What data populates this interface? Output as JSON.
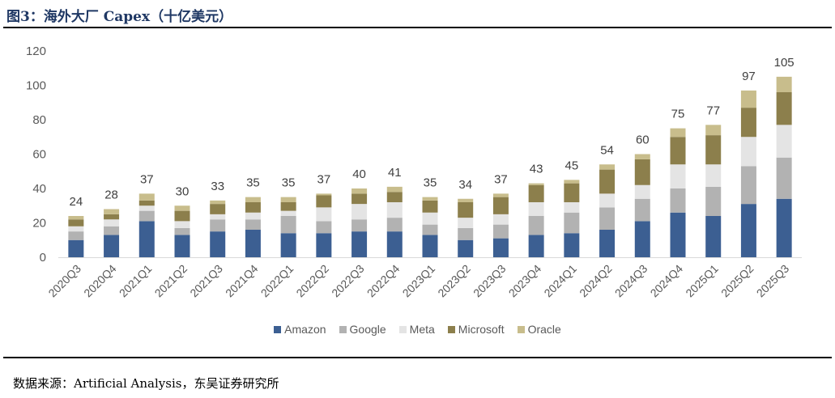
{
  "header": {
    "title": "图3：海外大厂 Capex（十亿美元）"
  },
  "footer": {
    "source": "数据来源：Artificial Analysis，东吴证券研究所"
  },
  "colors": {
    "Amazon": "#3c5f92",
    "Google": "#b2b2b2",
    "Meta": "#e4e4e4",
    "Microsoft": "#8c7f4c",
    "Oracle": "#c8bd8c",
    "axis_text": "#595959",
    "grid": "#d9d9d9"
  },
  "chart_data": {
    "type": "bar",
    "stacked": true,
    "title": "海外大厂 Capex（十亿美元）",
    "xlabel": "",
    "ylabel": "",
    "ylim": [
      0,
      120
    ],
    "yticks": [
      0,
      20,
      40,
      60,
      80,
      100,
      120
    ],
    "grid": false,
    "legend_position": "bottom",
    "categories": [
      "2020Q3",
      "2020Q4",
      "2021Q1",
      "2021Q2",
      "2021Q3",
      "2021Q4",
      "2022Q1",
      "2022Q2",
      "2022Q3",
      "2022Q4",
      "2023Q1",
      "2023Q2",
      "2023Q3",
      "2023Q4",
      "2024Q1",
      "2024Q2",
      "2024Q3",
      "2024Q4",
      "2025Q1",
      "2025Q2",
      "2025Q3"
    ],
    "series": [
      {
        "name": "Amazon",
        "values": [
          10,
          13,
          21,
          13,
          15,
          16,
          14,
          14,
          15,
          15,
          13,
          10,
          11,
          13,
          14,
          16,
          21,
          26,
          24,
          31,
          34
        ]
      },
      {
        "name": "Google",
        "values": [
          5,
          5,
          6,
          4,
          7,
          6,
          10,
          7,
          7,
          8,
          6,
          7,
          8,
          11,
          12,
          13,
          13,
          14,
          17,
          22,
          24
        ]
      },
      {
        "name": "Meta",
        "values": [
          3,
          4,
          3,
          4,
          3,
          4,
          3,
          8,
          9,
          9,
          7,
          6,
          6,
          8,
          6,
          8,
          8,
          14,
          13,
          17,
          19
        ]
      },
      {
        "name": "Microsoft",
        "values": [
          4,
          3,
          3,
          6,
          6,
          6,
          5,
          7,
          6,
          6,
          7,
          9,
          10,
          10,
          11,
          14,
          15,
          16,
          17,
          17,
          19
        ]
      },
      {
        "name": "Oracle",
        "values": [
          2,
          3,
          4,
          3,
          2,
          3,
          3,
          1,
          3,
          3,
          2,
          2,
          2,
          1,
          2,
          3,
          3,
          5,
          6,
          10,
          9
        ]
      }
    ],
    "totals": [
      24,
      28,
      37,
      30,
      33,
      35,
      35,
      37,
      40,
      41,
      35,
      34,
      37,
      43,
      45,
      54,
      60,
      75,
      77,
      97,
      105
    ]
  }
}
